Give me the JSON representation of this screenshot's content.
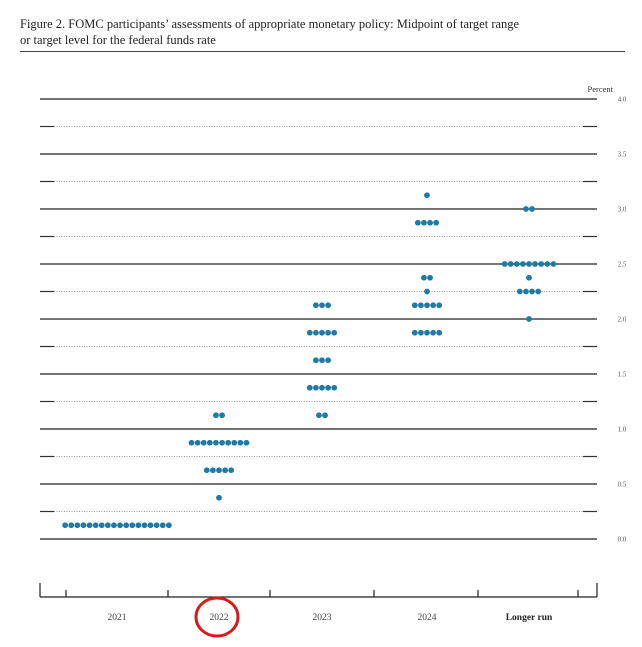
{
  "figure": {
    "title_line1": "Figure 2.  FOMC participants’ assessments of appropriate monetary policy:  Midpoint of target range",
    "title_line2": "or target level for the federal funds rate"
  },
  "chart_data": {
    "type": "scatter",
    "title": "Figure 2. FOMC participants’ assessments of appropriate monetary policy: Midpoint of target range or target level for the federal funds rate",
    "ylabel": "Percent",
    "ylim": [
      0,
      4.0
    ],
    "yticks": [
      "4.0",
      "3.5",
      "3.0",
      "2.5",
      "2.0",
      "1.5",
      "1.0",
      "0.5",
      "0.0"
    ],
    "categories": [
      "2021",
      "2022",
      "2023",
      "2024",
      "Longer run"
    ],
    "dot_color": "#1f7aa6",
    "highlight": {
      "category": "2022",
      "shape": "circle",
      "color": "#d21e1e"
    },
    "dots": [
      {
        "category": "2021",
        "counts": [
          {
            "value": 0.125,
            "count": 18
          }
        ]
      },
      {
        "category": "2022",
        "counts": [
          {
            "value": 0.375,
            "count": 1
          },
          {
            "value": 0.625,
            "count": 5
          },
          {
            "value": 0.875,
            "count": 10
          },
          {
            "value": 1.125,
            "count": 2
          }
        ]
      },
      {
        "category": "2023",
        "counts": [
          {
            "value": 1.125,
            "count": 2
          },
          {
            "value": 1.375,
            "count": 5
          },
          {
            "value": 1.625,
            "count": 3
          },
          {
            "value": 1.875,
            "count": 5
          },
          {
            "value": 2.125,
            "count": 3
          }
        ]
      },
      {
        "category": "2024",
        "counts": [
          {
            "value": 1.875,
            "count": 5
          },
          {
            "value": 2.125,
            "count": 5
          },
          {
            "value": 2.25,
            "count": 1
          },
          {
            "value": 2.375,
            "count": 2
          },
          {
            "value": 2.875,
            "count": 4
          },
          {
            "value": 3.125,
            "count": 1
          }
        ]
      },
      {
        "category": "Longer run",
        "counts": [
          {
            "value": 2.0,
            "count": 1
          },
          {
            "value": 2.25,
            "count": 4
          },
          {
            "value": 2.375,
            "count": 1
          },
          {
            "value": 2.5,
            "count": 9
          },
          {
            "value": 3.0,
            "count": 2
          }
        ]
      }
    ]
  }
}
